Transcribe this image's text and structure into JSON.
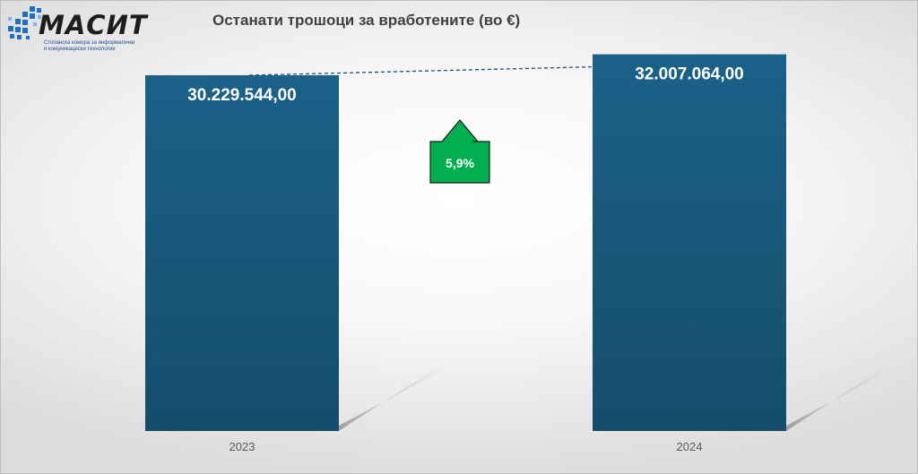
{
  "brand": {
    "name": "МАСИТ",
    "subtitle_line1": "Стопанска комора за информатички",
    "subtitle_line2": "и комуникациски технологии",
    "accent_color": "#1f6fc0"
  },
  "chart_data": {
    "type": "bar",
    "title": "Останати трошоци за вработените (во €)",
    "categories": [
      "2023",
      "2024"
    ],
    "values": [
      30229544.0,
      32007064.0
    ],
    "value_labels": [
      "30.229.544,00",
      "32.007.064,00"
    ],
    "bar_color": "#1a5c80",
    "growth": {
      "label": "5,9%",
      "color": "#00b050",
      "direction": "up"
    },
    "trend_line": "dashed",
    "xlabel": "",
    "ylabel": "",
    "ylim": [
      0,
      33500000
    ],
    "grid": false,
    "legend": "none"
  }
}
